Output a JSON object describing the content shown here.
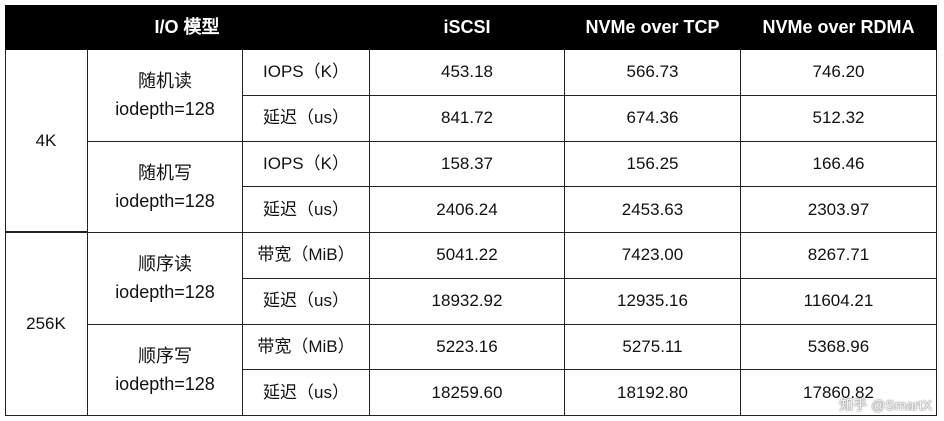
{
  "header": {
    "title": "I/O 模型",
    "columns": [
      "iSCSI",
      "NVMe over TCP",
      "NVMe over RDMA"
    ]
  },
  "groups": [
    {
      "block": "4K",
      "ops": [
        {
          "name": "随机读",
          "depth": "iodepth=128",
          "rows": [
            {
              "metric": "IOPS（K）",
              "values": [
                "453.18",
                "566.73",
                "746.20"
              ]
            },
            {
              "metric": "延迟（us）",
              "values": [
                "841.72",
                "674.36",
                "512.32"
              ]
            }
          ]
        },
        {
          "name": "随机写",
          "depth": "iodepth=128",
          "rows": [
            {
              "metric": "IOPS（K）",
              "values": [
                "158.37",
                "156.25",
                "166.46"
              ]
            },
            {
              "metric": "延迟（us）",
              "values": [
                "2406.24",
                "2453.63",
                "2303.97"
              ]
            }
          ]
        }
      ]
    },
    {
      "block": "256K",
      "ops": [
        {
          "name": "顺序读",
          "depth": "iodepth=128",
          "rows": [
            {
              "metric": "带宽（MiB）",
              "values": [
                "5041.22",
                "7423.00",
                "8267.71"
              ]
            },
            {
              "metric": "延迟（us）",
              "values": [
                "18932.92",
                "12935.16",
                "11604.21"
              ]
            }
          ]
        },
        {
          "name": "顺序写",
          "depth": "iodepth=128",
          "rows": [
            {
              "metric": "带宽（MiB）",
              "values": [
                "5223.16",
                "5275.11",
                "5368.96"
              ]
            },
            {
              "metric": "延迟（us）",
              "values": [
                "18259.60",
                "18192.80",
                "17860.82"
              ]
            }
          ]
        }
      ]
    }
  ],
  "watermark": "知乎 @SmartX"
}
